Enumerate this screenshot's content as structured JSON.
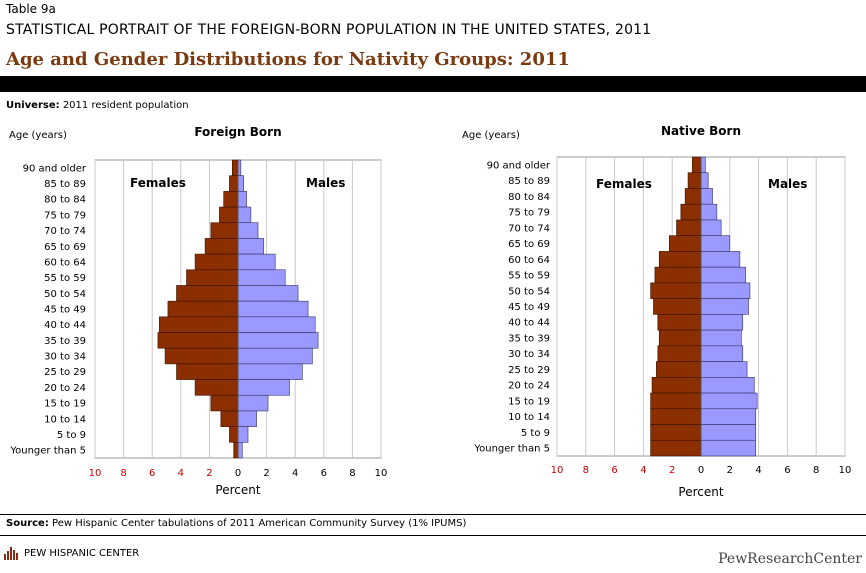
{
  "header": {
    "table_label": "Table 9a",
    "supertitle": "STATISTICAL PORTRAIT OF THE FOREIGN-BORN POPULATION IN THE UNITED STATES, 2011",
    "title": "Age and Gender Distributions for Nativity Groups: 2011",
    "universe_label": "Universe:",
    "universe_text": " 2011 resident population"
  },
  "footer": {
    "source_label": "Source:",
    "source_text": " Pew Hispanic Center tabulations of 2011 American Community Survey (1% IPUMS)",
    "logo_left": "PEW HISPANIC CENTER",
    "logo_right": "PewResearchCenter"
  },
  "colors": {
    "females": "#8B2E00",
    "males": "#9999FF",
    "title": "#7B3A10",
    "negative_tick": "#CC0000"
  },
  "chart_data": [
    {
      "type": "bar",
      "orientation": "horizontal-pyramid",
      "title": "Foreign Born",
      "ylabel": "Age (years)",
      "xlabel": "Percent",
      "xlim": [
        -10,
        10
      ],
      "xticks": [
        "10",
        "8",
        "6",
        "4",
        "2",
        "0",
        "2",
        "4",
        "6",
        "8",
        "10"
      ],
      "grid": true,
      "legend_labels": {
        "left": "Females",
        "right": "Males"
      },
      "categories": [
        "90 and older",
        "85 to 89",
        "80 to 84",
        "75 to 79",
        "70 to 74",
        "65 to 69",
        "60 to 64",
        "55 to 59",
        "50 to 54",
        "45 to 49",
        "40 to 44",
        "35 to 39",
        "30 to 34",
        "25 to 29",
        "20 to 24",
        "15 to 19",
        "10 to 14",
        "5 to 9",
        "Younger than 5"
      ],
      "series": [
        {
          "name": "Females",
          "values": [
            0.4,
            0.6,
            1.0,
            1.3,
            1.9,
            2.3,
            3.0,
            3.6,
            4.3,
            4.9,
            5.5,
            5.6,
            5.1,
            4.3,
            3.0,
            1.9,
            1.2,
            0.6,
            0.3
          ]
        },
        {
          "name": "Males",
          "values": [
            0.2,
            0.4,
            0.6,
            0.9,
            1.4,
            1.8,
            2.6,
            3.3,
            4.2,
            4.9,
            5.4,
            5.6,
            5.2,
            4.5,
            3.6,
            2.1,
            1.3,
            0.7,
            0.3
          ]
        }
      ]
    },
    {
      "type": "bar",
      "orientation": "horizontal-pyramid",
      "title": "Native Born",
      "ylabel": "Age (years)",
      "xlabel": "Percent",
      "xlim": [
        -10,
        10
      ],
      "xticks": [
        "10",
        "8",
        "6",
        "4",
        "2",
        "0",
        "2",
        "4",
        "6",
        "8",
        "10"
      ],
      "grid": true,
      "legend_labels": {
        "left": "Females",
        "right": "Males"
      },
      "categories": [
        "90 and older",
        "85 to 89",
        "80 to 84",
        "75 to 79",
        "70 to 74",
        "65 to 69",
        "60 to 64",
        "55 to 59",
        "50 to 54",
        "45 to 49",
        "40 to 44",
        "35 to 39",
        "30 to 34",
        "25 to 29",
        "20 to 24",
        "15 to 19",
        "10 to 14",
        "5 to 9",
        "Younger than 5"
      ],
      "series": [
        {
          "name": "Females",
          "values": [
            0.6,
            0.9,
            1.1,
            1.4,
            1.7,
            2.2,
            2.9,
            3.2,
            3.5,
            3.3,
            3.0,
            2.9,
            3.0,
            3.1,
            3.4,
            3.5,
            3.5,
            3.5,
            3.5
          ]
        },
        {
          "name": "Males",
          "values": [
            0.3,
            0.5,
            0.8,
            1.1,
            1.4,
            2.0,
            2.7,
            3.1,
            3.4,
            3.3,
            2.9,
            2.8,
            2.9,
            3.2,
            3.7,
            3.9,
            3.8,
            3.8,
            3.8
          ]
        }
      ]
    }
  ]
}
